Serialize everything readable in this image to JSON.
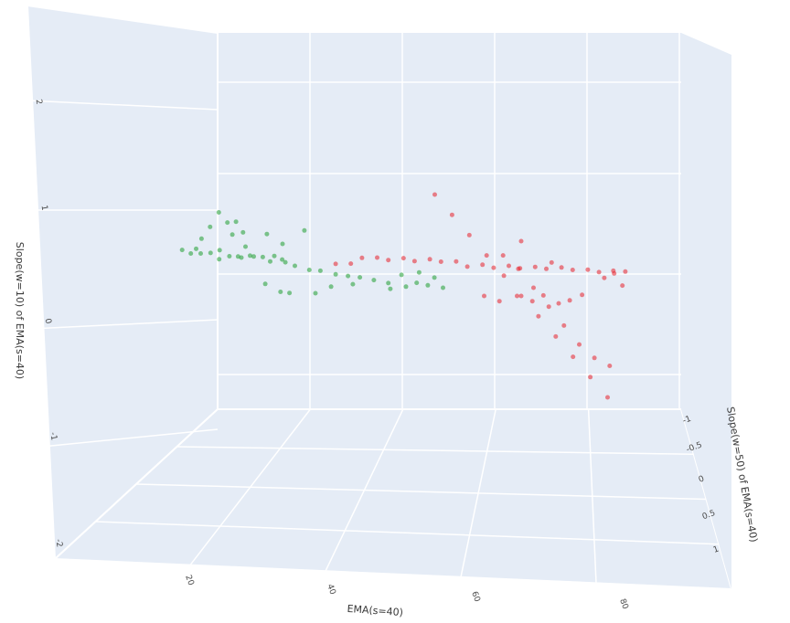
{
  "chart_data": {
    "type": "scatter",
    "projection": "3d",
    "xlabel": "EMA(s=40)",
    "ylabel": "Slope(w=50) of EMA(s=40)",
    "zlabel": "Slope(w=10) of EMA(s=40)",
    "x_ticks": [
      "20",
      "40",
      "60",
      "80"
    ],
    "y_ticks": [
      "-1",
      "-0.5",
      "0",
      "0.5",
      "1"
    ],
    "z_ticks": [
      "2",
      "1",
      "0",
      "-1",
      "-2"
    ],
    "background": "#e5ecf6",
    "grid": true,
    "series": [
      {
        "color": "#1f9e2f",
        "points": [
          [
            21,
            0,
            0.55
          ],
          [
            22,
            0.05,
            0.52
          ],
          [
            23,
            0.02,
            0.6
          ],
          [
            24,
            -0.03,
            0.5
          ],
          [
            25,
            0.05,
            0.56
          ],
          [
            26,
            0.1,
            0.48
          ],
          [
            27,
            -0.05,
            0.58
          ],
          [
            28,
            0.03,
            0.52
          ],
          [
            29,
            0.08,
            0.55
          ],
          [
            30,
            0,
            0.5
          ],
          [
            31,
            0.05,
            0.57
          ],
          [
            32,
            -0.02,
            0.53
          ],
          [
            33,
            0.04,
            0.56
          ],
          [
            34,
            0.06,
            0.5
          ],
          [
            35,
            0,
            0.58
          ],
          [
            36,
            0.03,
            0.54
          ],
          [
            37,
            -0.05,
            0.46
          ],
          [
            38,
            0.02,
            0.44
          ],
          [
            40,
            0.05,
            0.4
          ],
          [
            42,
            0,
            0.38
          ],
          [
            44,
            0.05,
            0.36
          ],
          [
            46,
            0.03,
            0.34
          ],
          [
            48,
            0,
            0.32
          ],
          [
            50,
            0.02,
            0.3
          ],
          [
            52,
            0.05,
            0.28
          ],
          [
            55,
            0,
            0.22
          ],
          [
            24,
            0.2,
            1.1
          ],
          [
            26,
            0.3,
            1.25
          ],
          [
            28,
            0.1,
            0.95
          ],
          [
            25,
            0.25,
            1.4
          ],
          [
            23,
            0.15,
            0.85
          ],
          [
            29,
            0.2,
            1.05
          ],
          [
            30,
            0.1,
            0.75
          ],
          [
            27,
            0.35,
            1.3
          ],
          [
            32,
            0.3,
            1.1
          ],
          [
            35,
            0.2,
            0.9
          ],
          [
            38,
            0.25,
            1.2
          ],
          [
            33,
            0.1,
            0.1
          ],
          [
            35,
            0.15,
            0.0
          ],
          [
            37,
            0.05,
            -0.05
          ],
          [
            40,
            0.2,
            0.05
          ],
          [
            43,
            0.1,
            0.15
          ],
          [
            46,
            0.15,
            0.25
          ],
          [
            52,
            0.1,
            0.2
          ],
          [
            54,
            0.05,
            0.45
          ],
          [
            56,
            0.1,
            0.35
          ],
          [
            58,
            0.05,
            0.3
          ],
          [
            57,
            0,
            0.5
          ],
          [
            59,
            0.05,
            0.45
          ],
          [
            60,
            0.1,
            0.3
          ]
        ]
      },
      {
        "color": "#e8202a",
        "points": [
          [
            44,
            0.05,
            0.55
          ],
          [
            46,
            0.1,
            0.6
          ],
          [
            48,
            0.05,
            0.7
          ],
          [
            50,
            0.1,
            0.75
          ],
          [
            52,
            0.05,
            0.7
          ],
          [
            54,
            0.1,
            0.78
          ],
          [
            56,
            0.05,
            0.72
          ],
          [
            58,
            0.1,
            0.8
          ],
          [
            60,
            0.05,
            0.75
          ],
          [
            62,
            0.1,
            0.8
          ],
          [
            64,
            0.05,
            0.7
          ],
          [
            66,
            0.1,
            0.78
          ],
          [
            68,
            0.05,
            0.72
          ],
          [
            70,
            0.1,
            0.8
          ],
          [
            72,
            0.05,
            0.75
          ],
          [
            74,
            0.1,
            0.82
          ],
          [
            76,
            0.05,
            0.78
          ],
          [
            78,
            0.1,
            0.85
          ],
          [
            80,
            0.05,
            0.8
          ],
          [
            82,
            0.1,
            0.85
          ],
          [
            84,
            0.05,
            0.8
          ],
          [
            86,
            0.1,
            0.82
          ],
          [
            88,
            0.05,
            0.85
          ],
          [
            65,
            0.3,
            0.3
          ],
          [
            67,
            0.35,
            0.25
          ],
          [
            70,
            0.3,
            0.35
          ],
          [
            72,
            0.35,
            0.3
          ],
          [
            74,
            0.3,
            0.4
          ],
          [
            76,
            0.35,
            0.3
          ],
          [
            78,
            0.3,
            0.35
          ],
          [
            66,
            0.6,
            1.2
          ],
          [
            68,
            0.65,
            1.0
          ],
          [
            70,
            0.7,
            0.7
          ],
          [
            72,
            0.75,
            0.4
          ],
          [
            74,
            0.8,
            0.1
          ],
          [
            76,
            0.85,
            -0.2
          ],
          [
            78,
            0.9,
            -0.4
          ],
          [
            80,
            0.95,
            -0.5
          ],
          [
            70,
            0.4,
            1.4
          ],
          [
            74,
            0.5,
            1.1
          ],
          [
            78,
            0.6,
            0.6
          ],
          [
            82,
            0.5,
            0.9
          ],
          [
            84,
            0.4,
            1.0
          ],
          [
            86,
            0.3,
            0.7
          ],
          [
            60,
            -0.1,
            1.9
          ],
          [
            62,
            0,
            1.6
          ],
          [
            64,
            0.1,
            1.3
          ],
          [
            66,
            0.2,
            1.0
          ],
          [
            68,
            0.3,
            0.7
          ],
          [
            70,
            0.4,
            0.4
          ],
          [
            72,
            0.5,
            0.1
          ],
          [
            74,
            0.6,
            -0.2
          ],
          [
            76,
            0.7,
            -0.5
          ],
          [
            78,
            0.8,
            -0.8
          ],
          [
            80,
            0.9,
            -1.1
          ]
        ]
      }
    ]
  }
}
